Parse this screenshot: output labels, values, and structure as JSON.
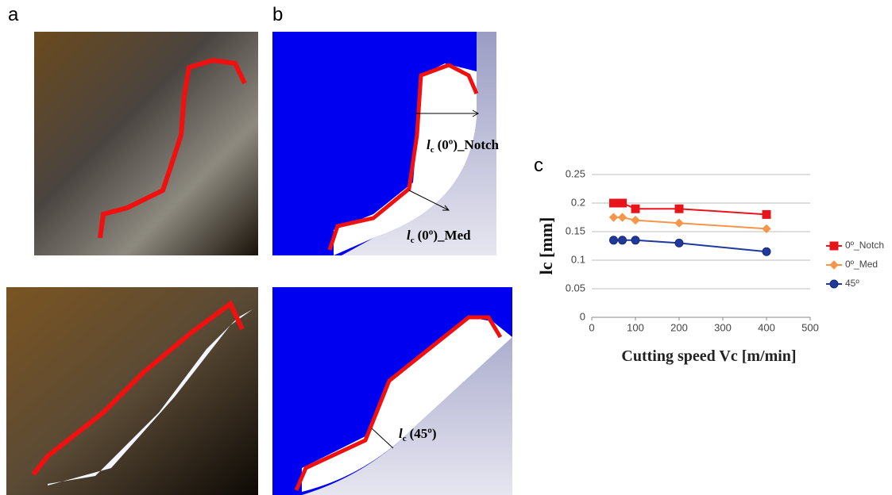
{
  "panels": {
    "a": "a",
    "b": "b",
    "c": "c"
  },
  "annotations": [
    {
      "symbol": "l",
      "subscript": "c",
      "text": "(0º)_Notch"
    },
    {
      "symbol": "l",
      "subscript": "c",
      "text": "(0º)_Med"
    },
    {
      "symbol": "l",
      "subscript": "c",
      "text": "(45º)"
    }
  ],
  "chart_data": {
    "type": "line",
    "xlabel": "Cutting speed Vc [m/min]",
    "ylabel": "lc [mm]",
    "x": [
      50,
      70,
      100,
      200,
      400
    ],
    "series": [
      {
        "name": "0º_Notch",
        "color": "#e8141c",
        "marker": "square",
        "values": [
          0.2,
          0.2,
          0.19,
          0.19,
          0.18
        ]
      },
      {
        "name": "0º_Med",
        "color": "#f7964a",
        "marker": "diamond",
        "values": [
          0.175,
          0.175,
          0.17,
          0.165,
          0.155
        ]
      },
      {
        "name": "45º",
        "color": "#1f3a9c",
        "marker": "circle",
        "values": [
          0.135,
          0.135,
          0.135,
          0.13,
          0.115
        ]
      }
    ],
    "xlim": [
      0,
      500
    ],
    "xticks": [
      0,
      100,
      200,
      300,
      400,
      500
    ],
    "ylim": [
      0,
      0.25
    ],
    "yticks": [
      0,
      0.05,
      0.1,
      0.15,
      0.2,
      0.25
    ],
    "grid": true,
    "legend": "right"
  }
}
